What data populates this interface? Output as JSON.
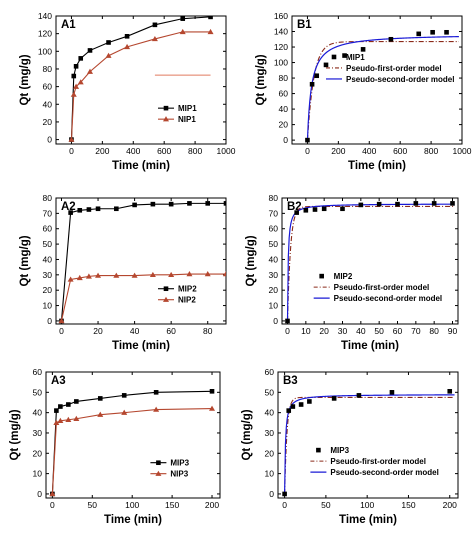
{
  "colors": {
    "mip": "#000000",
    "nip": "#b5472f",
    "nip_fill": "#e07a5f",
    "pfo": "#8b2a1a",
    "pso": "#1a1ad6"
  },
  "chart_data": [
    {
      "id": "A1",
      "type": "line",
      "panel_label": "A1",
      "xlabel": "Time (min)",
      "ylabel": "Qt (mg/g)",
      "xlim": [
        -100,
        1000
      ],
      "ylim": [
        -5,
        140
      ],
      "xticks": [
        0,
        200,
        400,
        600,
        800,
        1000
      ],
      "yticks": [
        0,
        20,
        40,
        60,
        80,
        100,
        120,
        140
      ],
      "legend": "right",
      "series": [
        {
          "name": "MIP1",
          "marker": "square",
          "color": "#000000",
          "x": [
            0,
            15,
            30,
            60,
            120,
            240,
            360,
            540,
            720,
            900
          ],
          "y": [
            0,
            72,
            83,
            92,
            101,
            110,
            117,
            130,
            137,
            139
          ]
        },
        {
          "name": "NIP1",
          "marker": "triangle",
          "color": "#b5472f",
          "x": [
            0,
            15,
            30,
            60,
            120,
            240,
            360,
            540,
            720,
            900
          ],
          "y": [
            0,
            51,
            60,
            65,
            77,
            95,
            105,
            114,
            122,
            122
          ]
        }
      ],
      "extra_line": {
        "x": [
          540,
          720,
          900
        ],
        "y": [
          73,
          73,
          73
        ],
        "color": "#e07a5f"
      }
    },
    {
      "id": "B1",
      "type": "scatter",
      "panel_label": "B1",
      "xlabel": "Time (min)",
      "ylabel": "Qt (mg/g)",
      "xlim": [
        -100,
        1000
      ],
      "ylim": [
        -5,
        160
      ],
      "xticks": [
        0,
        200,
        400,
        600,
        800,
        1000
      ],
      "yticks": [
        0,
        20,
        40,
        60,
        80,
        100,
        120,
        140,
        160
      ],
      "legend": "right",
      "series": [
        {
          "name": "MIP1",
          "kind": "points",
          "x": [
            0,
            30,
            60,
            120,
            240,
            360,
            540,
            720,
            810,
            900
          ],
          "y": [
            0,
            72,
            83,
            97,
            109,
            117,
            130,
            137,
            139,
            139
          ]
        }
      ],
      "models": [
        {
          "name": "Pseudo-first-order model",
          "kind": "pfo",
          "qe": 127,
          "k": 0.024
        },
        {
          "name": "Pseudo-second-order model",
          "kind": "pso",
          "qe": 137,
          "k": 0.00028
        }
      ]
    },
    {
      "id": "A2",
      "type": "line",
      "panel_label": "A2",
      "xlabel": "Time (min)",
      "ylabel": "Qt (mg/g)",
      "xlim": [
        -3,
        90
      ],
      "ylim": [
        -2,
        80
      ],
      "xticks": [
        0,
        20,
        40,
        60,
        80
      ],
      "yticks": [
        0,
        10,
        20,
        30,
        40,
        50,
        60,
        70,
        80
      ],
      "legend": "right",
      "series": [
        {
          "name": "MIP2",
          "marker": "square",
          "color": "#000000",
          "x": [
            0,
            5,
            10,
            15,
            20,
            30,
            40,
            50,
            60,
            70,
            80,
            90
          ],
          "y": [
            0,
            70.5,
            72,
            72.5,
            73,
            73,
            75.5,
            76,
            76,
            76.5,
            76.5,
            76.5
          ]
        },
        {
          "name": "NIP2",
          "marker": "triangle",
          "color": "#b5472f",
          "x": [
            0,
            5,
            10,
            15,
            20,
            30,
            40,
            50,
            60,
            70,
            80,
            90
          ],
          "y": [
            0,
            27,
            28,
            29,
            29.5,
            29.5,
            29.5,
            30,
            30,
            30.5,
            30.5,
            30.5
          ]
        }
      ]
    },
    {
      "id": "B2",
      "type": "scatter",
      "panel_label": "B2",
      "xlabel": "Time (min)",
      "ylabel": "Qt (mg/g)",
      "xlim": [
        -3,
        93
      ],
      "ylim": [
        -2,
        80
      ],
      "xticks": [
        0,
        10,
        20,
        30,
        40,
        50,
        60,
        70,
        80,
        90
      ],
      "yticks": [
        0,
        10,
        20,
        30,
        40,
        50,
        60,
        70,
        80
      ],
      "legend": "right",
      "series": [
        {
          "name": "MIP2",
          "kind": "points",
          "x": [
            0,
            5,
            10,
            15,
            20,
            30,
            40,
            50,
            60,
            70,
            80,
            90
          ],
          "y": [
            0,
            70.5,
            72,
            72.5,
            73,
            73,
            75.5,
            76,
            76,
            76.5,
            76.5,
            76.5
          ]
        }
      ],
      "models": [
        {
          "name": "Pseudo-first-order model",
          "kind": "pfo",
          "qe": 74.5,
          "k": 0.6
        },
        {
          "name": "Pseudo-second-order model",
          "kind": "pso",
          "qe": 76.3,
          "k": 0.035
        }
      ]
    },
    {
      "id": "A3",
      "type": "line",
      "panel_label": "A3",
      "xlabel": "Time (min)",
      "ylabel": "Qt (mg/g)",
      "xlim": [
        -8,
        210
      ],
      "ylim": [
        -2,
        60
      ],
      "xticks": [
        0,
        50,
        100,
        150,
        200
      ],
      "yticks": [
        0,
        10,
        20,
        30,
        40,
        50,
        60
      ],
      "legend": "right",
      "series": [
        {
          "name": "MIP3",
          "marker": "square",
          "color": "#000000",
          "x": [
            0,
            5,
            10,
            20,
            30,
            60,
            90,
            130,
            200
          ],
          "y": [
            0,
            41,
            43,
            44,
            45.5,
            47,
            48.5,
            50,
            50.5
          ]
        },
        {
          "name": "NIP3",
          "marker": "triangle",
          "color": "#b5472f",
          "x": [
            0,
            5,
            10,
            20,
            30,
            60,
            90,
            130,
            200
          ],
          "y": [
            0,
            35,
            36,
            36.5,
            37,
            39,
            40,
            41.5,
            42
          ]
        }
      ]
    },
    {
      "id": "B3",
      "type": "scatter",
      "panel_label": "B3",
      "xlabel": "Time (min)",
      "ylabel": "Qt (mg/g)",
      "xlim": [
        -8,
        210
      ],
      "ylim": [
        -2,
        60
      ],
      "xticks": [
        0,
        50,
        100,
        150,
        200
      ],
      "yticks": [
        0,
        10,
        20,
        30,
        40,
        50,
        60
      ],
      "legend": "right",
      "series": [
        {
          "name": "MIP3",
          "kind": "points",
          "x": [
            0,
            5,
            10,
            20,
            30,
            60,
            90,
            130,
            200
          ],
          "y": [
            0,
            41,
            43,
            44,
            45.5,
            47,
            48.5,
            50,
            50.5
          ]
        }
      ],
      "models": [
        {
          "name": "Pseudo-first-order model",
          "kind": "pfo",
          "qe": 47.5,
          "k": 0.35
        },
        {
          "name": "Pseudo-second-order model",
          "kind": "pso",
          "qe": 49,
          "k": 0.02
        }
      ]
    }
  ]
}
